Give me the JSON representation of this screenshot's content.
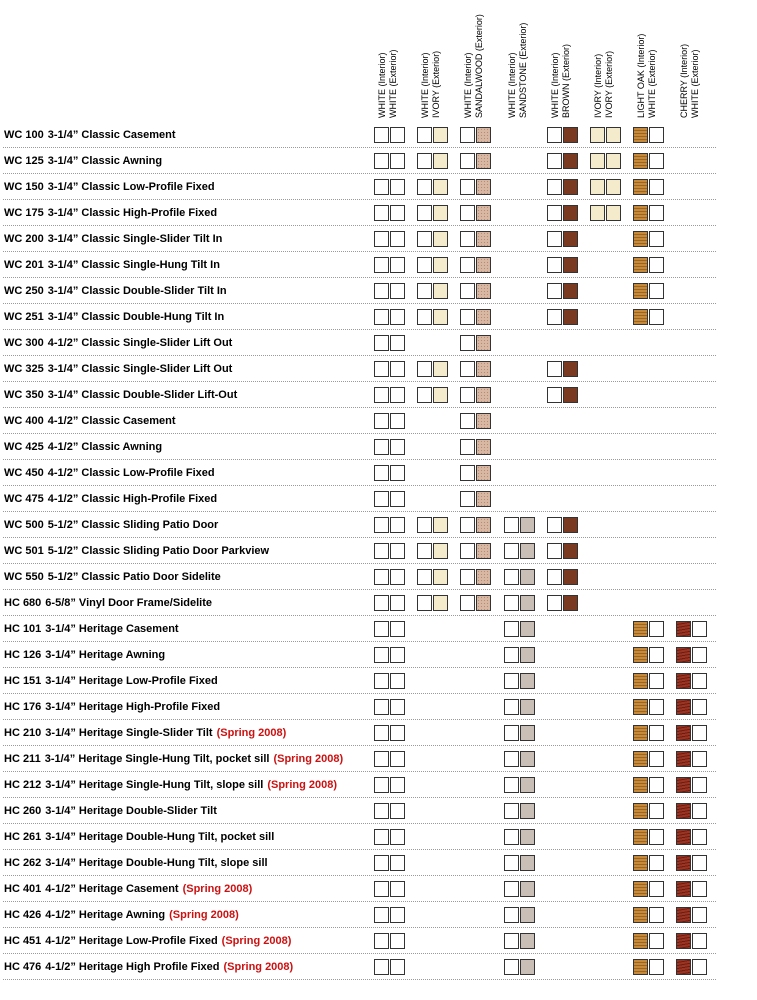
{
  "columns": [
    {
      "interior": "WHITE (Interior)",
      "exterior": "WHITE (Exterior)",
      "interior_color": "white",
      "exterior_color": "white"
    },
    {
      "interior": "WHITE (Interior)",
      "exterior": "IVORY (Exterior)",
      "interior_color": "white",
      "exterior_color": "ivory"
    },
    {
      "interior": "WHITE (Interior)",
      "exterior": "SANDALWOOD (Exterior)",
      "interior_color": "white",
      "exterior_color": "sandalwood"
    },
    {
      "interior": "WHITE (Interior)",
      "exterior": "SANDSTONE (Exterior)",
      "interior_color": "white",
      "exterior_color": "sandstone"
    },
    {
      "interior": "WHITE (Interior)",
      "exterior": "BROWN (Exterior)",
      "interior_color": "white",
      "exterior_color": "brown"
    },
    {
      "interior": "IVORY (Interior)",
      "exterior": "IVORY (Exterior)",
      "interior_color": "ivory",
      "exterior_color": "ivory"
    },
    {
      "interior": "LIGHT OAK (Interior)",
      "exterior": "WHITE (Exterior)",
      "interior_color": "oak",
      "exterior_color": "white"
    },
    {
      "interior": "CHERRY (Interior)",
      "exterior": "WHITE (Exterior)",
      "interior_color": "cherry",
      "exterior_color": "white"
    }
  ],
  "colors": {
    "white": "#ffffff",
    "ivory": "#f3ebcc",
    "sandalwood": "#d8b8a2",
    "sandstone": "#c9bfb6",
    "brown": "#7a3a22",
    "oak": "#b57a2e",
    "cherry": "#8a2a1c",
    "note_red": "#cc1111"
  },
  "products": [
    {
      "code": "WC 100",
      "name": "3-1/4”  Classic Casement",
      "note": "",
      "avail": [
        1,
        1,
        1,
        0,
        1,
        1,
        1,
        0
      ]
    },
    {
      "code": "WC 125",
      "name": "3-1/4”  Classic Awning",
      "note": "",
      "avail": [
        1,
        1,
        1,
        0,
        1,
        1,
        1,
        0
      ]
    },
    {
      "code": "WC 150",
      "name": "3-1/4”  Classic Low-Profile Fixed",
      "note": "",
      "avail": [
        1,
        1,
        1,
        0,
        1,
        1,
        1,
        0
      ]
    },
    {
      "code": "WC 175",
      "name": "3-1/4”  Classic High-Profile Fixed",
      "note": "",
      "avail": [
        1,
        1,
        1,
        0,
        1,
        1,
        1,
        0
      ]
    },
    {
      "code": "WC 200",
      "name": "3-1/4”  Classic Single-Slider Tilt In",
      "note": "",
      "avail": [
        1,
        1,
        1,
        0,
        1,
        0,
        1,
        0
      ]
    },
    {
      "code": "WC 201",
      "name": "3-1/4”  Classic Single-Hung Tilt In",
      "note": "",
      "avail": [
        1,
        1,
        1,
        0,
        1,
        0,
        1,
        0
      ]
    },
    {
      "code": "WC 250",
      "name": "3-1/4”  Classic Double-Slider Tilt In",
      "note": "",
      "avail": [
        1,
        1,
        1,
        0,
        1,
        0,
        1,
        0
      ]
    },
    {
      "code": "WC 251",
      "name": "3-1/4”  Classic Double-Hung Tilt In",
      "note": "",
      "avail": [
        1,
        1,
        1,
        0,
        1,
        0,
        1,
        0
      ]
    },
    {
      "code": "WC 300",
      "name": "4-1/2”  Classic Single-Slider Lift Out",
      "note": "",
      "avail": [
        1,
        0,
        1,
        0,
        0,
        0,
        0,
        0
      ]
    },
    {
      "code": "WC 325",
      "name": "3-1/4”  Classic Single-Slider Lift Out",
      "note": "",
      "avail": [
        1,
        1,
        1,
        0,
        1,
        0,
        0,
        0
      ]
    },
    {
      "code": "WC 350",
      "name": "3-1/4”  Classic Double-Slider Lift-Out",
      "note": "",
      "avail": [
        1,
        1,
        1,
        0,
        1,
        0,
        0,
        0
      ]
    },
    {
      "code": "WC 400",
      "name": "4-1/2”  Classic Casement",
      "note": "",
      "avail": [
        1,
        0,
        1,
        0,
        0,
        0,
        0,
        0
      ]
    },
    {
      "code": "WC 425",
      "name": "4-1/2”  Classic Awning",
      "note": "",
      "avail": [
        1,
        0,
        1,
        0,
        0,
        0,
        0,
        0
      ]
    },
    {
      "code": "WC 450",
      "name": "4-1/2”  Classic Low-Profile Fixed",
      "note": "",
      "avail": [
        1,
        0,
        1,
        0,
        0,
        0,
        0,
        0
      ]
    },
    {
      "code": "WC 475",
      "name": "4-1/2”  Classic High-Profile Fixed",
      "note": "",
      "avail": [
        1,
        0,
        1,
        0,
        0,
        0,
        0,
        0
      ]
    },
    {
      "code": "WC 500",
      "name": "5-1/2”  Classic Sliding Patio Door",
      "note": "",
      "avail": [
        1,
        1,
        1,
        1,
        1,
        0,
        0,
        0
      ]
    },
    {
      "code": "WC 501",
      "name": "5-1/2”  Classic Sliding Patio Door Parkview",
      "note": "",
      "avail": [
        1,
        1,
        1,
        1,
        1,
        0,
        0,
        0
      ]
    },
    {
      "code": "WC 550",
      "name": "5-1/2”  Classic Patio Door Sidelite",
      "note": "",
      "avail": [
        1,
        1,
        1,
        1,
        1,
        0,
        0,
        0
      ]
    },
    {
      "code": "HC 680",
      "name": "6-5/8”  Vinyl Door Frame/Sidelite",
      "note": "",
      "avail": [
        1,
        1,
        1,
        1,
        1,
        0,
        0,
        0
      ]
    },
    {
      "code": "HC 101",
      "name": "3-1/4”  Heritage Casement",
      "note": "",
      "avail": [
        1,
        0,
        0,
        1,
        0,
        0,
        1,
        1
      ]
    },
    {
      "code": "HC 126",
      "name": "3-1/4”  Heritage Awning",
      "note": "",
      "avail": [
        1,
        0,
        0,
        1,
        0,
        0,
        1,
        1
      ]
    },
    {
      "code": "HC 151",
      "name": "3-1/4”  Heritage Low-Profile Fixed",
      "note": "",
      "avail": [
        1,
        0,
        0,
        1,
        0,
        0,
        1,
        1
      ]
    },
    {
      "code": "HC 176",
      "name": "3-1/4”  Heritage High-Profile Fixed",
      "note": "",
      "avail": [
        1,
        0,
        0,
        1,
        0,
        0,
        1,
        1
      ]
    },
    {
      "code": "HC 210",
      "name": "3-1/4”  Heritage Single-Slider Tilt",
      "note": "(Spring 2008)",
      "avail": [
        1,
        0,
        0,
        1,
        0,
        0,
        1,
        1
      ]
    },
    {
      "code": "HC 211",
      "name": "3-1/4”  Heritage Single-Hung Tilt, pocket sill",
      "note": "(Spring 2008)",
      "avail": [
        1,
        0,
        0,
        1,
        0,
        0,
        1,
        1
      ]
    },
    {
      "code": "HC 212",
      "name": "3-1/4”  Heritage Single-Hung Tilt, slope sill",
      "note": "(Spring 2008)",
      "avail": [
        1,
        0,
        0,
        1,
        0,
        0,
        1,
        1
      ]
    },
    {
      "code": "HC 260",
      "name": "3-1/4”  Heritage Double-Slider Tilt",
      "note": "",
      "avail": [
        1,
        0,
        0,
        1,
        0,
        0,
        1,
        1
      ]
    },
    {
      "code": "HC 261",
      "name": "3-1/4”  Heritage Double-Hung Tilt, pocket sill",
      "note": "",
      "avail": [
        1,
        0,
        0,
        1,
        0,
        0,
        1,
        1
      ]
    },
    {
      "code": "HC 262",
      "name": "3-1/4”  Heritage Double-Hung Tilt, slope sill",
      "note": "",
      "avail": [
        1,
        0,
        0,
        1,
        0,
        0,
        1,
        1
      ]
    },
    {
      "code": "HC 401",
      "name": "4-1/2”  Heritage Casement",
      "note": "(Spring 2008)",
      "avail": [
        1,
        0,
        0,
        1,
        0,
        0,
        1,
        1
      ]
    },
    {
      "code": "HC 426",
      "name": "4-1/2”  Heritage Awning",
      "note": "(Spring 2008)",
      "avail": [
        1,
        0,
        0,
        1,
        0,
        0,
        1,
        1
      ]
    },
    {
      "code": "HC 451",
      "name": "4-1/2”  Heritage Low-Profile Fixed",
      "note": "(Spring 2008)",
      "avail": [
        1,
        0,
        0,
        1,
        0,
        0,
        1,
        1
      ]
    },
    {
      "code": "HC 476",
      "name": "4-1/2”  Heritage High Profile Fixed",
      "note": "(Spring 2008)",
      "avail": [
        1,
        0,
        0,
        1,
        0,
        0,
        1,
        1
      ]
    }
  ]
}
